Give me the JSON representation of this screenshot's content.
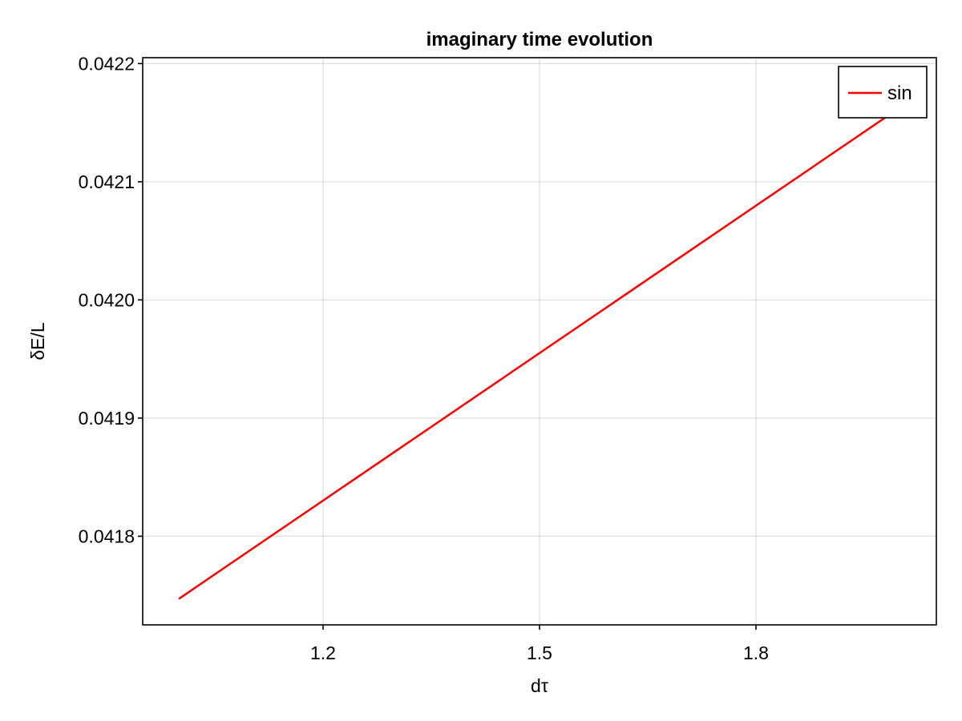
{
  "chart_data": {
    "type": "line",
    "title": "imaginary time evolution",
    "xlabel": "dτ",
    "ylabel": "δE/L",
    "xlim": [
      0.95,
      2.05
    ],
    "ylim": [
      0.041725,
      0.042205
    ],
    "x_ticks": [
      1.2,
      1.5,
      1.8
    ],
    "x_tick_labels": [
      "1.2",
      "1.5",
      "1.8"
    ],
    "y_ticks": [
      0.0418,
      0.0419,
      0.042,
      0.0421,
      0.0422
    ],
    "y_tick_labels": [
      "0.0418",
      "0.0419",
      "0.0420",
      "0.0421",
      "0.0422"
    ],
    "grid": true,
    "legend_position": "top-right",
    "series": [
      {
        "name": "sin",
        "color": "#ff0000",
        "x": [
          1.0,
          2.0
        ],
        "y": [
          0.041747,
          0.042163
        ]
      }
    ]
  }
}
